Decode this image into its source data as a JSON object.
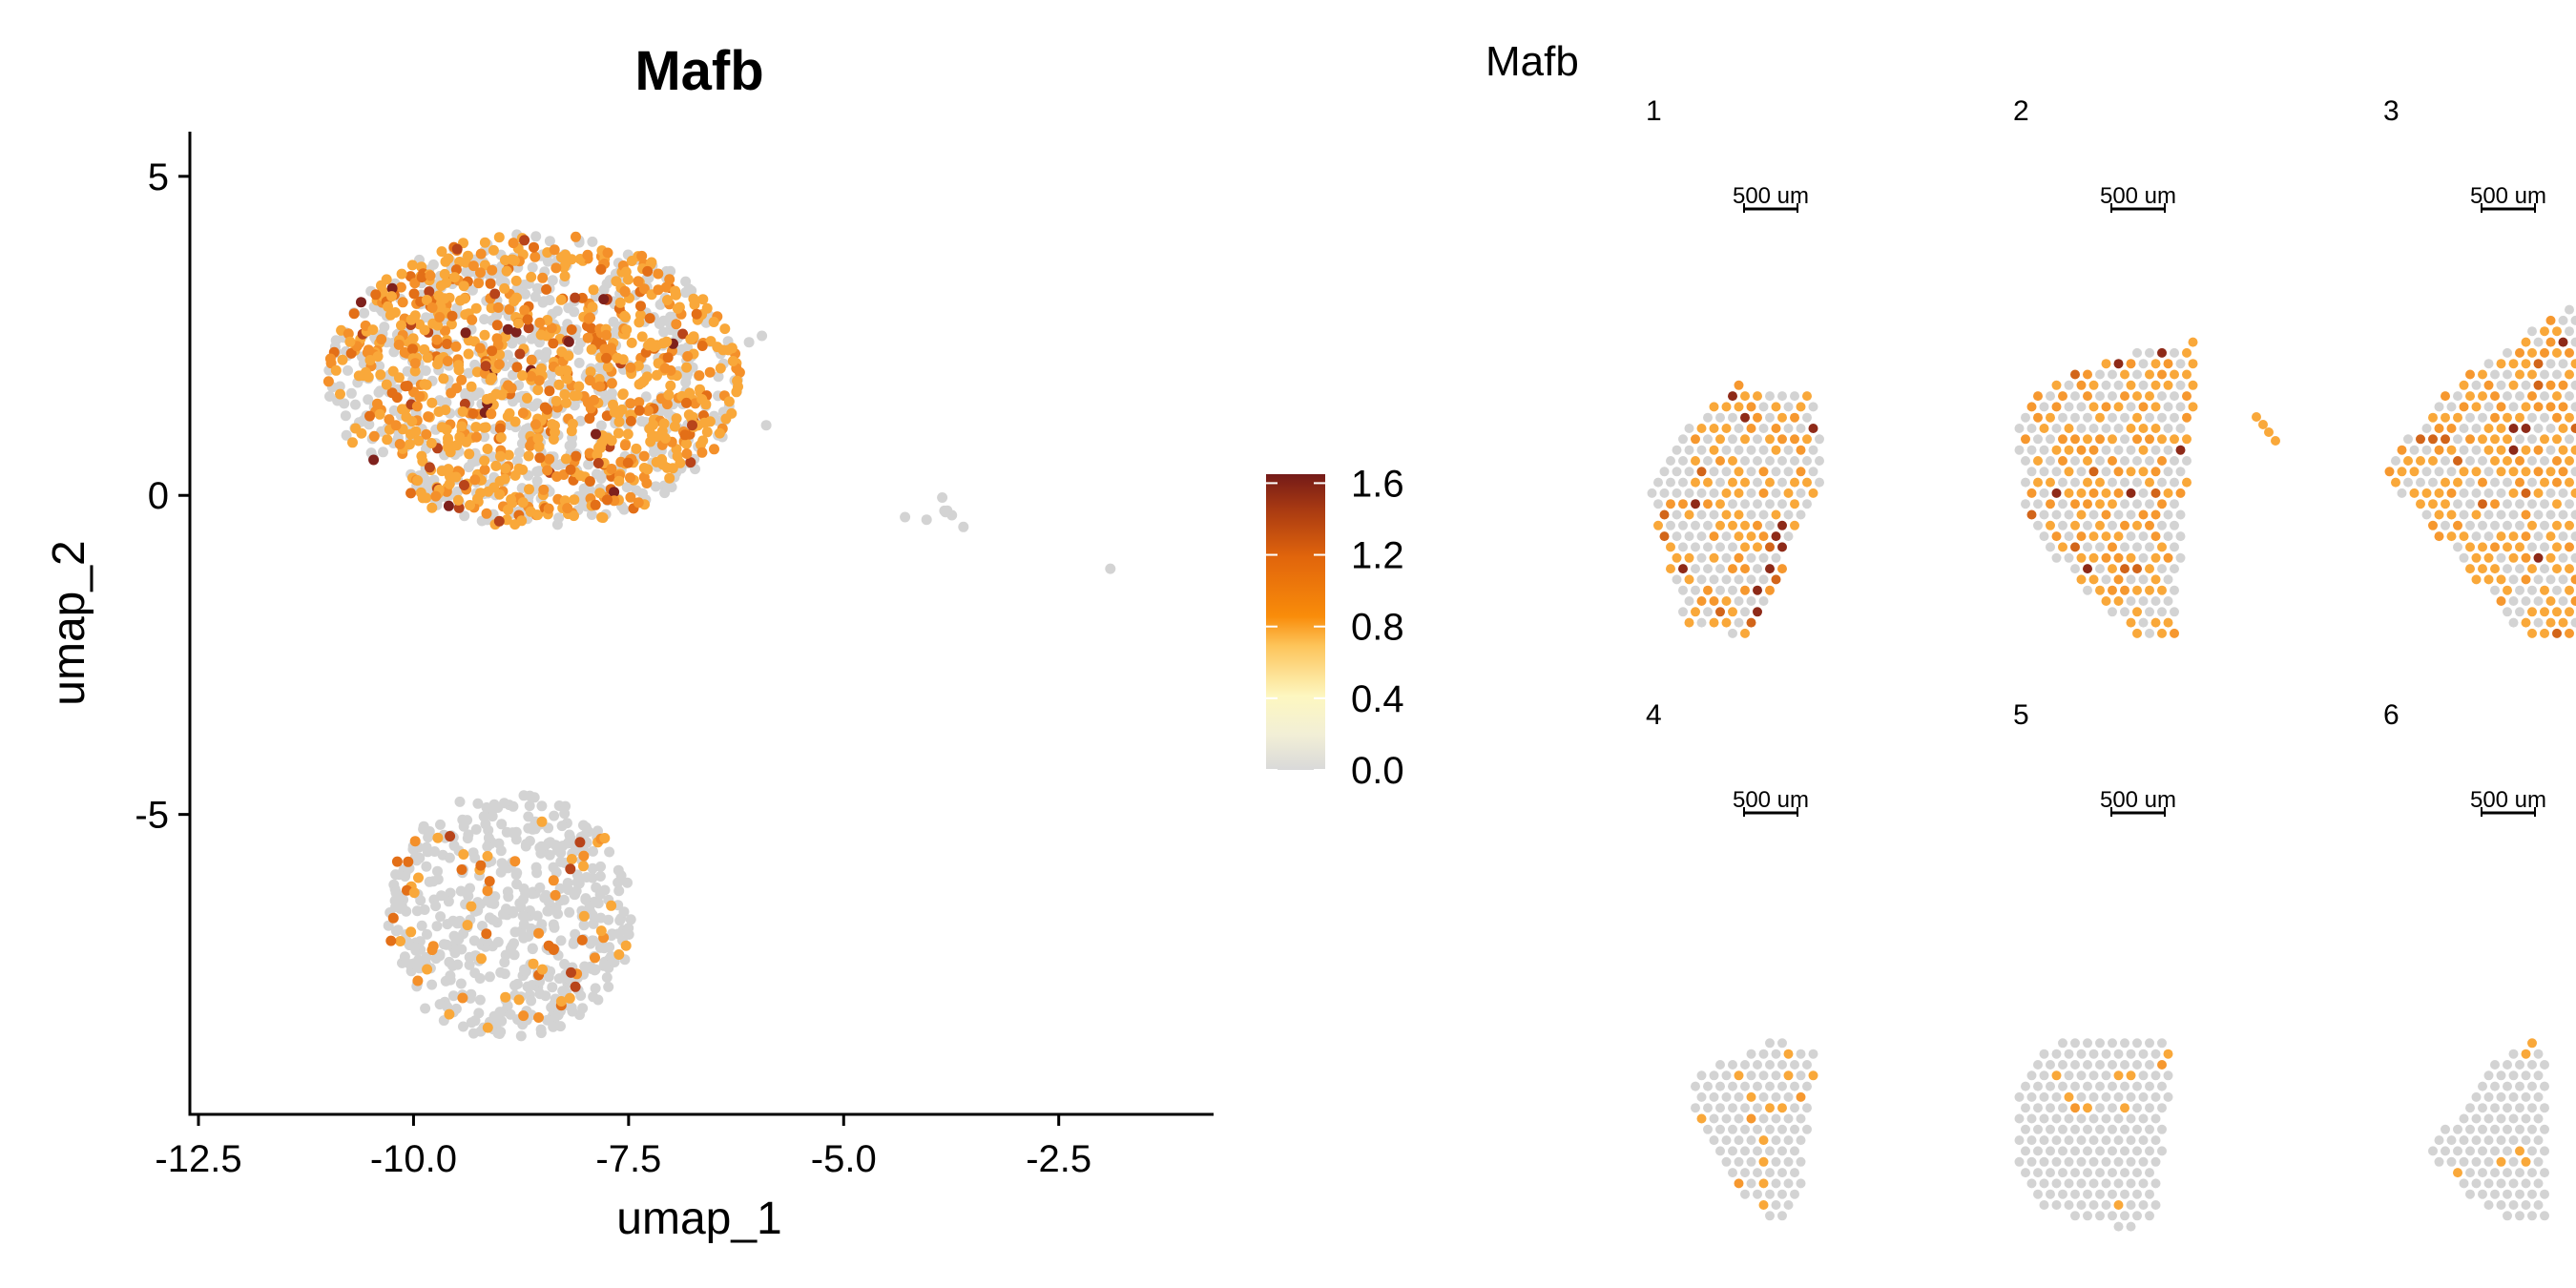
{
  "chart_data": [
    {
      "type": "scatter",
      "title": "Mafb",
      "xlabel": "umap_1",
      "ylabel": "umap_2",
      "xlim": [
        -12.6,
        -0.7
      ],
      "ylim": [
        -9.7,
        5.7
      ],
      "x_ticks": [
        -12.5,
        -10.0,
        -7.5,
        -5.0,
        -2.5
      ],
      "x_tick_labels": [
        "-12.5",
        "-10.0",
        "-7.5",
        "-5.0",
        "-2.5"
      ],
      "y_ticks": [
        5,
        0,
        -5
      ],
      "y_tick_labels": [
        "5",
        "0",
        "-5"
      ],
      "grid": false,
      "color_by": "expression",
      "clusters": [
        {
          "shape": "blob",
          "center": [
            -8.6,
            1.8
          ],
          "radius": [
            2.4,
            2.3
          ],
          "n": 1500,
          "expr_fraction": 0.55
        },
        {
          "shape": "circle",
          "center": [
            -8.9,
            -6.6
          ],
          "radius": [
            1.45,
            1.95
          ],
          "n": 560,
          "expr_fraction": 0.12
        },
        {
          "shape": "small",
          "center": [
            -3.8,
            -0.25
          ],
          "radius": [
            0.15,
            0.1
          ],
          "n": 8,
          "expr_fraction": 0.0
        }
      ],
      "outliers": [
        [
          -5.9,
          1.1
        ],
        [
          -1.9,
          -1.15
        ],
        [
          -5.95,
          2.5
        ],
        [
          -6.1,
          2.4
        ]
      ]
    },
    {
      "type": "scatter",
      "title": "Mafb",
      "panels": [
        {
          "label": "1",
          "scalebar": "500 um",
          "expr_fraction": 0.48,
          "hotspots": 0.08
        },
        {
          "label": "2",
          "scalebar": "500 um",
          "expr_fraction": 0.52,
          "hotspots": 0.12
        },
        {
          "label": "3",
          "scalebar": "500 um",
          "expr_fraction": 0.55,
          "hotspots": 0.12
        },
        {
          "label": "4",
          "scalebar": "500 um",
          "expr_fraction": 0.12,
          "hotspots": 0.0
        },
        {
          "label": "5",
          "scalebar": "500 um",
          "expr_fraction": 0.06,
          "hotspots": 0.0
        },
        {
          "label": "6",
          "scalebar": "500 um",
          "expr_fraction": 0.04,
          "hotspots": 0.0
        }
      ]
    }
  ],
  "legend": {
    "ticks": [
      1.6,
      1.2,
      0.8,
      0.4,
      0.0
    ],
    "tick_labels": [
      "1.6",
      "1.2",
      "0.8",
      "0.4",
      "0.0"
    ],
    "range": [
      0.0,
      1.65
    ],
    "colors": [
      "#d9d9d9",
      "#fdf9c8",
      "#fdc45a",
      "#f98c0a",
      "#e1650c",
      "#a93a12",
      "#741a18"
    ]
  }
}
